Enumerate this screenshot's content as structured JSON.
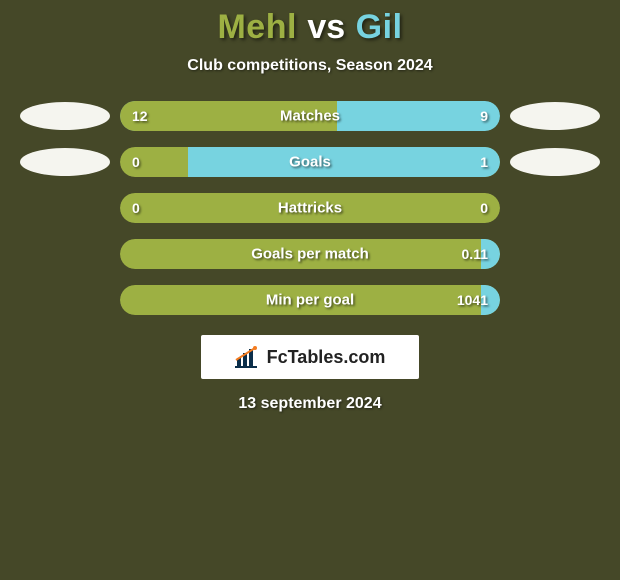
{
  "background_color": "#454828",
  "title": {
    "player1": "Mehl",
    "player1_color": "#9db043",
    "vs": "vs",
    "vs_color": "#ffffff",
    "player2": "Gil",
    "player2_color": "#77d3e0",
    "fontsize": 34
  },
  "subtitle": "Club competitions, Season 2024",
  "colors": {
    "player1": "#9db043",
    "player2": "#77d3e0",
    "bubble_p1": "#f5f5ef",
    "bubble_p2": "#f5f5ef",
    "bar_base_default": "#9db043"
  },
  "rows": [
    {
      "label": "Matches",
      "left_val": "12",
      "right_val": "9",
      "left_num": 12,
      "right_num": 9,
      "show_bubbles": true,
      "base_color": "#77d3e0",
      "fill_side": "left",
      "fill_color": "#9db043",
      "fill_pct": 57
    },
    {
      "label": "Goals",
      "left_val": "0",
      "right_val": "1",
      "left_num": 0,
      "right_num": 1,
      "show_bubbles": true,
      "base_color": "#9db043",
      "fill_side": "right",
      "fill_color": "#77d3e0",
      "fill_pct": 82
    },
    {
      "label": "Hattricks",
      "left_val": "0",
      "right_val": "0",
      "left_num": 0,
      "right_num": 0,
      "show_bubbles": false,
      "base_color": "#9db043",
      "fill_side": "none",
      "fill_color": "#77d3e0",
      "fill_pct": 0
    },
    {
      "label": "Goals per match",
      "left_val": "",
      "right_val": "0.11",
      "left_num": 0,
      "right_num": 0.11,
      "show_bubbles": false,
      "base_color": "#9db043",
      "fill_side": "right",
      "fill_color": "#77d3e0",
      "fill_pct": 5
    },
    {
      "label": "Min per goal",
      "left_val": "",
      "right_val": "1041",
      "left_num": 0,
      "right_num": 1041,
      "show_bubbles": false,
      "base_color": "#9db043",
      "fill_side": "right",
      "fill_color": "#77d3e0",
      "fill_pct": 5
    }
  ],
  "logo": {
    "text": "FcTables.com"
  },
  "date": "13 september 2024"
}
